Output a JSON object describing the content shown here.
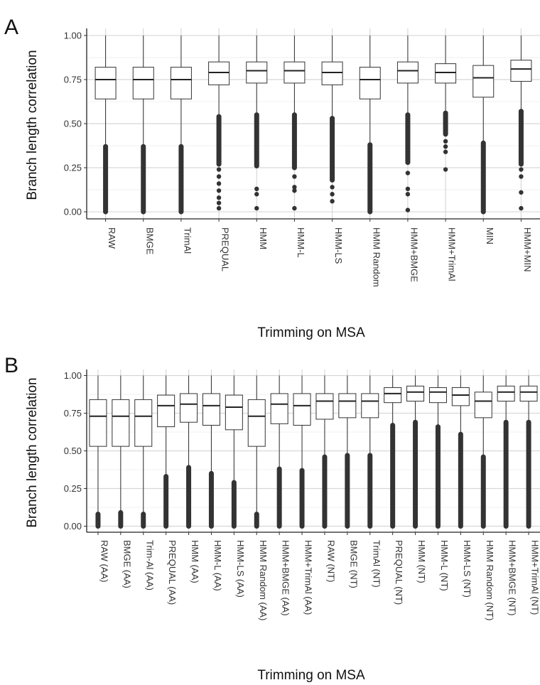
{
  "chart_data": [
    {
      "panel": "A",
      "type": "box",
      "xlabel": "Trimming on MSA",
      "ylabel": "Branch length correlation",
      "ylim": [
        -0.04,
        1.04
      ],
      "yticks": [
        "0.00",
        "0.25",
        "0.50",
        "0.75",
        "1.00"
      ],
      "grid": true,
      "categories": [
        "RAW",
        "BMGE",
        "TrimAl",
        "PREQUAL",
        "HMM",
        "HMM-L",
        "HMM-LS",
        "HMM Random",
        "HMM+BMGE",
        "HMM+TrimAl",
        "MIN",
        "HMM+MIN"
      ],
      "boxes": [
        {
          "whisker_low": 0.38,
          "q1": 0.64,
          "median": 0.75,
          "q3": 0.82,
          "whisker_high": 1.0,
          "outlier_low": 0.0,
          "outlier_high": 0.37
        },
        {
          "whisker_low": 0.38,
          "q1": 0.64,
          "median": 0.75,
          "q3": 0.82,
          "whisker_high": 1.0,
          "outlier_low": 0.0,
          "outlier_high": 0.37
        },
        {
          "whisker_low": 0.38,
          "q1": 0.64,
          "median": 0.75,
          "q3": 0.82,
          "whisker_high": 1.0,
          "outlier_low": 0.0,
          "outlier_high": 0.37
        },
        {
          "whisker_low": 0.55,
          "q1": 0.72,
          "median": 0.79,
          "q3": 0.85,
          "whisker_high": 1.0,
          "outlier_low": 0.27,
          "outlier_high": 0.54
        },
        {
          "whisker_low": 0.56,
          "q1": 0.73,
          "median": 0.8,
          "q3": 0.85,
          "whisker_high": 1.0,
          "outlier_low": 0.26,
          "outlier_high": 0.55
        },
        {
          "whisker_low": 0.56,
          "q1": 0.73,
          "median": 0.8,
          "q3": 0.85,
          "whisker_high": 1.0,
          "outlier_low": 0.25,
          "outlier_high": 0.55
        },
        {
          "whisker_low": 0.54,
          "q1": 0.72,
          "median": 0.79,
          "q3": 0.85,
          "whisker_high": 1.0,
          "outlier_low": 0.18,
          "outlier_high": 0.53
        },
        {
          "whisker_low": 0.39,
          "q1": 0.64,
          "median": 0.75,
          "q3": 0.82,
          "whisker_high": 1.0,
          "outlier_low": 0.0,
          "outlier_high": 0.38
        },
        {
          "whisker_low": 0.56,
          "q1": 0.73,
          "median": 0.8,
          "q3": 0.85,
          "whisker_high": 1.0,
          "outlier_low": 0.28,
          "outlier_high": 0.55
        },
        {
          "whisker_low": 0.57,
          "q1": 0.73,
          "median": 0.79,
          "q3": 0.84,
          "whisker_high": 1.0,
          "outlier_low": 0.44,
          "outlier_high": 0.56
        },
        {
          "whisker_low": 0.4,
          "q1": 0.65,
          "median": 0.76,
          "q3": 0.83,
          "whisker_high": 1.0,
          "outlier_low": 0.0,
          "outlier_high": 0.39
        },
        {
          "whisker_low": 0.58,
          "q1": 0.74,
          "median": 0.81,
          "q3": 0.86,
          "whisker_high": 1.0,
          "outlier_low": 0.27,
          "outlier_high": 0.57
        }
      ],
      "scattered_outliers": [
        {
          "category": "PREQUAL",
          "values": [
            0.02,
            0.05,
            0.08,
            0.12,
            0.16,
            0.2,
            0.24
          ]
        },
        {
          "category": "HMM",
          "values": [
            0.02,
            0.1,
            0.13
          ]
        },
        {
          "category": "HMM-L",
          "values": [
            0.02,
            0.12,
            0.14,
            0.2
          ]
        },
        {
          "category": "HMM-LS",
          "values": [
            0.06,
            0.1,
            0.14
          ]
        },
        {
          "category": "HMM+BMGE",
          "values": [
            0.01,
            0.1,
            0.13,
            0.22
          ]
        },
        {
          "category": "HMM+TrimAl",
          "values": [
            0.24,
            0.34,
            0.37,
            0.4
          ]
        },
        {
          "category": "HMM+MIN",
          "values": [
            0.02,
            0.11,
            0.2,
            0.24
          ]
        }
      ]
    },
    {
      "panel": "B",
      "type": "box",
      "xlabel": "Trimming on MSA",
      "ylabel": "Branch length correlation",
      "ylim": [
        -0.04,
        1.04
      ],
      "yticks": [
        "0.00",
        "0.25",
        "0.50",
        "0.75",
        "1.00"
      ],
      "grid": true,
      "categories": [
        "RAW (AA)",
        "BMGE (AA)",
        "Trim-Al (AA)",
        "PREQUAL (AA)",
        "HMM (AA)",
        "HMM-L (AA)",
        "HMM-LS (AA)",
        "HMM Random (AA)",
        "HMM+BMGE (AA)",
        "HMM+TrimAl (AA)",
        "RAW (NT)",
        "BMGE (NT)",
        "TrimAl (NT)",
        "PREQUAL (NT)",
        "HMM (NT)",
        "HMM-L (NT)",
        "HMM-LS (NT)",
        "HMM Random (NT)",
        "HMM+BMGE (NT)",
        "HMM+TrimAl (NT)"
      ],
      "boxes": [
        {
          "whisker_low": 0.09,
          "q1": 0.53,
          "median": 0.73,
          "q3": 0.84,
          "whisker_high": 1.0,
          "outlier_low": 0.0,
          "outlier_high": 0.08
        },
        {
          "whisker_low": 0.1,
          "q1": 0.53,
          "median": 0.73,
          "q3": 0.84,
          "whisker_high": 1.0,
          "outlier_low": 0.0,
          "outlier_high": 0.09
        },
        {
          "whisker_low": 0.09,
          "q1": 0.53,
          "median": 0.73,
          "q3": 0.84,
          "whisker_high": 1.0,
          "outlier_low": 0.0,
          "outlier_high": 0.08
        },
        {
          "whisker_low": 0.34,
          "q1": 0.66,
          "median": 0.8,
          "q3": 0.87,
          "whisker_high": 1.0,
          "outlier_low": 0.0,
          "outlier_high": 0.33
        },
        {
          "whisker_low": 0.4,
          "q1": 0.69,
          "median": 0.81,
          "q3": 0.88,
          "whisker_high": 1.0,
          "outlier_low": 0.0,
          "outlier_high": 0.39
        },
        {
          "whisker_low": 0.36,
          "q1": 0.67,
          "median": 0.8,
          "q3": 0.88,
          "whisker_high": 1.0,
          "outlier_low": 0.0,
          "outlier_high": 0.35
        },
        {
          "whisker_low": 0.3,
          "q1": 0.64,
          "median": 0.79,
          "q3": 0.87,
          "whisker_high": 1.0,
          "outlier_low": 0.0,
          "outlier_high": 0.29
        },
        {
          "whisker_low": 0.09,
          "q1": 0.53,
          "median": 0.73,
          "q3": 0.84,
          "whisker_high": 1.0,
          "outlier_low": 0.0,
          "outlier_high": 0.08
        },
        {
          "whisker_low": 0.39,
          "q1": 0.68,
          "median": 0.81,
          "q3": 0.88,
          "whisker_high": 1.0,
          "outlier_low": 0.0,
          "outlier_high": 0.38
        },
        {
          "whisker_low": 0.38,
          "q1": 0.67,
          "median": 0.8,
          "q3": 0.88,
          "whisker_high": 1.0,
          "outlier_low": 0.0,
          "outlier_high": 0.37
        },
        {
          "whisker_low": 0.47,
          "q1": 0.71,
          "median": 0.83,
          "q3": 0.88,
          "whisker_high": 1.0,
          "outlier_low": 0.0,
          "outlier_high": 0.46
        },
        {
          "whisker_low": 0.48,
          "q1": 0.72,
          "median": 0.83,
          "q3": 0.88,
          "whisker_high": 1.0,
          "outlier_low": 0.0,
          "outlier_high": 0.47
        },
        {
          "whisker_low": 0.48,
          "q1": 0.72,
          "median": 0.83,
          "q3": 0.88,
          "whisker_high": 1.0,
          "outlier_low": 0.0,
          "outlier_high": 0.47
        },
        {
          "whisker_low": 0.68,
          "q1": 0.82,
          "median": 0.88,
          "q3": 0.92,
          "whisker_high": 1.0,
          "outlier_low": 0.0,
          "outlier_high": 0.67
        },
        {
          "whisker_low": 0.7,
          "q1": 0.83,
          "median": 0.89,
          "q3": 0.93,
          "whisker_high": 1.0,
          "outlier_low": 0.0,
          "outlier_high": 0.69
        },
        {
          "whisker_low": 0.67,
          "q1": 0.82,
          "median": 0.89,
          "q3": 0.92,
          "whisker_high": 1.0,
          "outlier_low": 0.0,
          "outlier_high": 0.66
        },
        {
          "whisker_low": 0.62,
          "q1": 0.8,
          "median": 0.87,
          "q3": 0.92,
          "whisker_high": 1.0,
          "outlier_low": 0.0,
          "outlier_high": 0.61
        },
        {
          "whisker_low": 0.47,
          "q1": 0.72,
          "median": 0.83,
          "q3": 0.89,
          "whisker_high": 1.0,
          "outlier_low": 0.0,
          "outlier_high": 0.46
        },
        {
          "whisker_low": 0.7,
          "q1": 0.83,
          "median": 0.89,
          "q3": 0.93,
          "whisker_high": 1.0,
          "outlier_low": 0.0,
          "outlier_high": 0.69
        },
        {
          "whisker_low": 0.7,
          "q1": 0.83,
          "median": 0.89,
          "q3": 0.93,
          "whisker_high": 1.0,
          "outlier_low": 0.0,
          "outlier_high": 0.69
        }
      ],
      "scattered_outliers": []
    }
  ]
}
